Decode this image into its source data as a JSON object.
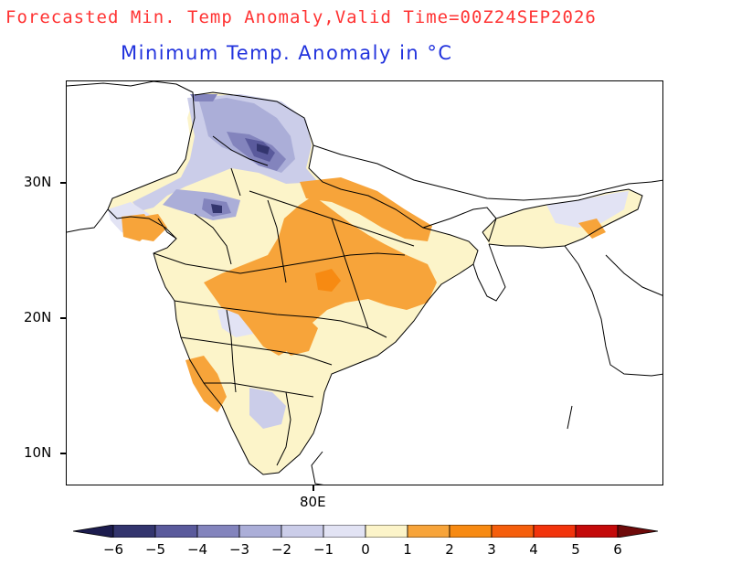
{
  "header": {
    "title": "Forecasted Min. Temp Anomaly,Valid Time=00Z24SEP2026",
    "subtitle": "Minimum Temp. Anomaly in °C"
  },
  "colors": {
    "title": "#ff3333",
    "subtitle": "#2233dd"
  },
  "axes": {
    "lat_labels": [
      "30N",
      "20N",
      "10N"
    ],
    "lon_labels": [
      "80E"
    ]
  },
  "legend": {
    "labels": [
      "−6",
      "−5",
      "−4",
      "−3",
      "−2",
      "−1",
      "0",
      "1",
      "2",
      "3",
      "4",
      "5",
      "6"
    ],
    "bins": [
      {
        "range": "below −6",
        "color": "#1c1c4e"
      },
      {
        "range": "−6 to −5",
        "color": "#33356e"
      },
      {
        "range": "−5 to −4",
        "color": "#5a5a9c"
      },
      {
        "range": "−4 to −3",
        "color": "#8384bd"
      },
      {
        "range": "−3 to −2",
        "color": "#abaed8"
      },
      {
        "range": "−2 to −1",
        "color": "#cbcde9"
      },
      {
        "range": "−1 to 0",
        "color": "#e2e3f4"
      },
      {
        "range": "0 to 1",
        "color": "#fcf4c9"
      },
      {
        "range": "1 to 2",
        "color": "#f7a43a"
      },
      {
        "range": "2 to 3",
        "color": "#f78a12"
      },
      {
        "range": "3 to 4",
        "color": "#f55e0c"
      },
      {
        "range": "4 to 5",
        "color": "#f2340c"
      },
      {
        "range": "5 to 6",
        "color": "#c40a0a"
      },
      {
        "range": "above 6",
        "color": "#6e0a0a"
      }
    ]
  }
}
